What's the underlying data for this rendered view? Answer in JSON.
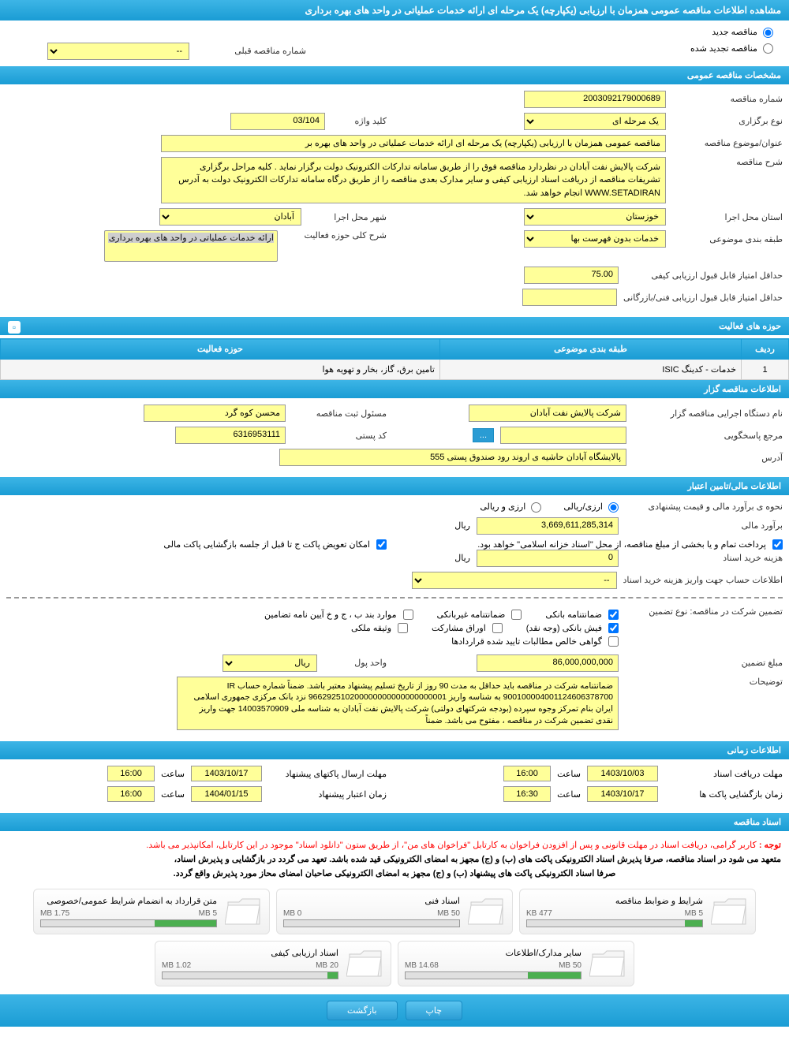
{
  "page_title": "مشاهده اطلاعات مناقصه عمومی همزمان با ارزیابی (یکپارچه) یک مرحله ای ارائه خدمات عملیاتی در واحد های بهره برداری",
  "radios": {
    "new_tender": "مناقصه جدید",
    "renewed_tender": "مناقصه تجدید شده"
  },
  "prev_number": {
    "label": "شماره مناقصه قبلی",
    "value": "--"
  },
  "sections": {
    "general": "مشخصات مناقصه عمومی",
    "activity_fields": "حوزه های فعالیت",
    "organizer": "اطلاعات مناقصه گزار",
    "financial": "اطلاعات مالی/تامین اعتبار",
    "timing": "اطلاعات زمانی",
    "documents": "اسناد مناقصه"
  },
  "general": {
    "tender_number_label": "شماره مناقصه",
    "tender_number": "2003092179000689",
    "holding_type_label": "نوع برگزاری",
    "holding_type": "یک مرحله ای",
    "keyword_label": "کلید واژه",
    "keyword": "03/104",
    "subject_label": "عنوان/موضوع مناقصه",
    "subject": "مناقصه عمومی همزمان با ارزیابی (یکپارچه) یک مرحله ای ارائه خدمات عملیاتی در واحد های بهره بر",
    "desc_label": "شرح مناقصه",
    "desc": "شرکت پالایش نفت آبادان در نظردارد مناقصه فوق را از طریق سامانه تدارکات الکترونیک دولت برگزار نماید . کلیه مراحل برگزاری تشریفات مناقصه از دریافت اسناد ارزیابی کیفی و سایر مدارک بعدی مناقصه را از طریق درگاه سامانه تدارکات الکترونیک دولت به آدرس WWW.SETADIRAN انجام خواهد شد.",
    "province_label": "استان محل اجرا",
    "province": "خوزستان",
    "city_label": "شهر محل اجرا",
    "city": "آبادان",
    "category_label": "طبقه بندی موضوعی",
    "category": "خدمات بدون فهرست بها",
    "activity_scope_label": "شرح کلی حوزه فعالیت",
    "activity_scope": "ارائه خدمات عملیاتی در واحد های بهره برداری",
    "min_quality_label": "حداقل امتیاز قابل قبول ارزیابی کیفی",
    "min_quality": "75.00",
    "min_tech_label": "حداقل امتیاز قابل قبول ارزیابی فنی/بازرگانی",
    "min_tech": ""
  },
  "activity_table": {
    "headers": {
      "row": "ردیف",
      "category": "طبقه بندی موضوعی",
      "field": "حوزه فعالیت"
    },
    "rows": [
      {
        "idx": "1",
        "category": "خدمات - کدینگ ISIC",
        "field": "تامین برق، گاز، بخار و تهویه هوا"
      }
    ]
  },
  "organizer": {
    "org_name_label": "نام دستگاه اجرایی مناقصه گزار",
    "org_name": "شرکت پالایش نفت آبادان",
    "reg_officer_label": "مسئول ثبت مناقصه",
    "reg_officer": "محسن کوه گرد",
    "responder_label": "مرجع پاسخگویی",
    "responder": "",
    "browse": "...",
    "postal_label": "کد پستی",
    "postal": "6316953111",
    "address_label": "آدرس",
    "address": "پالایشگاه آبادان حاشیه ی اروند رود صندوق پستی 555"
  },
  "financial": {
    "estimate_method_label": "نحوه ی برآورد مالی و قیمت پیشنهادی",
    "currency_option1": "ارزی/ریالی",
    "currency_option2": "ارزی و ریالی",
    "estimate_label": "برآورد مالی",
    "estimate": "3,669,611,285,314",
    "rial": "ریال",
    "payment_note": "پرداخت تمام و یا بخشی از مبلغ مناقصه، از محل \"اسناد خزانه اسلامی\" خواهد بود.",
    "exchange_note": "امکان تعویض پاکت ج تا قبل از جلسه بازگشایی پاکت مالی",
    "doc_cost_label": "هزینه خرید اسناد",
    "doc_cost": "0",
    "account_info_label": "اطلاعات حساب جهت واریز هزینه خرید اسناد",
    "account_info": "--",
    "guarantee_type_label": "تضمین شرکت در مناقصه:   نوع تضمین",
    "guarantee_bank": "ضمانتنامه بانکی",
    "guarantee_nonbank": "ضمانتنامه غیربانکی",
    "guarantee_bonds": "موارد بند ب ، ج و خ آیین نامه تضامین",
    "guarantee_receipt": "فیش بانکی (وجه نقد)",
    "guarantee_shares": "اوراق مشارکت",
    "guarantee_property": "وثیقه ملکی",
    "guarantee_certified": "گواهی خالص مطالبات تایید شده قراردادها",
    "guarantee_amount_label": "مبلغ تضمین",
    "guarantee_amount": "86,000,000,000",
    "currency_unit_label": "واحد پول",
    "currency_unit": "ریال",
    "explain_label": "توضیحات",
    "explain": "ضمانتنامه  شرکت در مناقصه باید حداقل به مدت 90 روز از تاریخ تسلیم پیشنهاد معتبر باشد.    ضمناً شماره حساب  IR  900100004001124606378700 به شناسه واریز 966292510200000000000000000001  نزد بانک مرکزی جمهوری اسلامی ایران بنام تمرکز وجوه سپرده (بودجه شرکتهای دولتی) شرکت پالایش نفت آبادان به شناسه ملی 14003570909 جهت واریز نقدی تضمین شرکت در مناقصه ، مفتوح می باشد. ضمناً"
  },
  "timing": {
    "receive_deadline_label": "مهلت دریافت اسناد",
    "receive_date": "1403/10/03",
    "receive_time": "16:00",
    "bid_deadline_label": "مهلت ارسال پاکتهای پیشنهاد",
    "bid_date": "1403/10/17",
    "bid_time": "16:00",
    "opening_label": "زمان بازگشایی پاکت ها",
    "opening_date": "1403/10/17",
    "opening_time": "16:30",
    "validity_label": "زمان اعتبار پیشنهاد",
    "validity_date": "1404/01/15",
    "validity_time": "16:00",
    "time_label": "ساعت"
  },
  "documents": {
    "notice_label": "توجه :",
    "notice": "کاربر گرامی، دریافت اسناد در مهلت قانونی و پس از افزودن فراخوان به کارتابل \"فراخوان های من\"، از طریق ستون \"دانلود اسناد\" موجود در این کارتابل، امکانپذیر می باشد.",
    "commitment1": "متعهد می شود در اسناد مناقصه، صرفا پذیرش اسناد الکترونیکی پاکت های (ب) و (ج) مجهز به امضای الکترونیکی قید شده باشد. تعهد می گردد در بازگشایی و پذیرش اسناد،",
    "commitment2": "صرفا اسناد الکترونیکی پاکت های پیشنهاد (ب) و (ج) مجهز به امضای الکترونیکی صاحبان امضای محاز مورد پذیرش واقع گردد.",
    "items": [
      {
        "title": "شرایط و ضوابط مناقصه",
        "max": "5 MB",
        "used": "477 KB",
        "fill_pct": 10
      },
      {
        "title": "اسناد فنی",
        "max": "50 MB",
        "used": "0 MB",
        "fill_pct": 0
      },
      {
        "title": "متن قرارداد به انضمام شرایط عمومی/خصوصی",
        "max": "5 MB",
        "used": "1.75 MB",
        "fill_pct": 35
      },
      {
        "title": "سایر مدارک/اطلاعات",
        "max": "50 MB",
        "used": "14.68 MB",
        "fill_pct": 30
      },
      {
        "title": "اسناد ارزیابی کیفی",
        "max": "20 MB",
        "used": "1.02 MB",
        "fill_pct": 6
      }
    ]
  },
  "buttons": {
    "print": "چاپ",
    "back": "بازگشت"
  },
  "colors": {
    "header_bg": "#2aa5d8",
    "field_bg": "#ffff99",
    "red": "#ff0000"
  }
}
